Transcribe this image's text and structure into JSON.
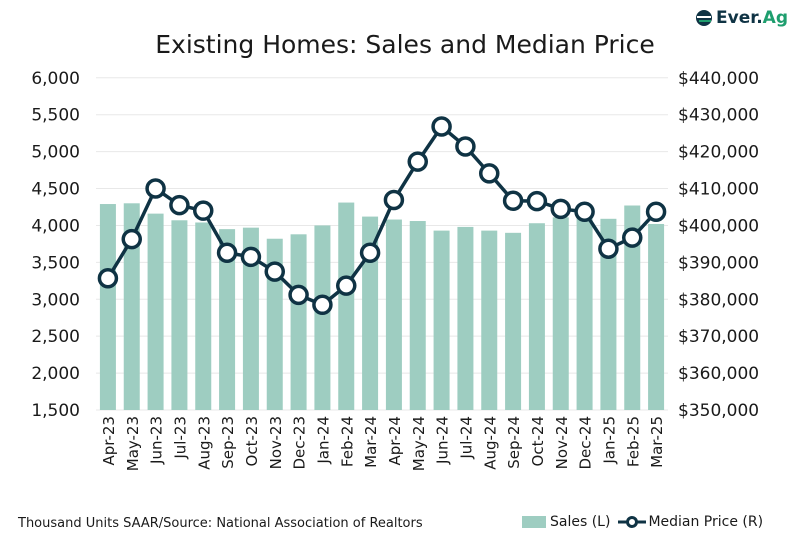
{
  "title": "Existing Homes: Sales and Median Price",
  "logo": {
    "text": "Ever.Ag"
  },
  "source": "Thousand Units SAAR/Source: National Association of Realtors",
  "colors": {
    "bars": "#9ecdc1",
    "line": "#0f3344",
    "grid": "#e8e8e8"
  },
  "chart_data": {
    "type": "bar+line",
    "categories": [
      "Apr-23",
      "May-23",
      "Jun-23",
      "Jul-23",
      "Aug-23",
      "Sep-23",
      "Oct-23",
      "Nov-23",
      "Dec-23",
      "Jan-24",
      "Feb-24",
      "Mar-24",
      "Apr-24",
      "May-24",
      "Jun-24",
      "Jul-24",
      "Aug-24",
      "Sep-24",
      "Oct-24",
      "Nov-24",
      "Dec-24",
      "Jan-25",
      "Feb-25",
      "Mar-25"
    ],
    "series": [
      {
        "name": "Sales (L)",
        "type": "bar",
        "axis": "left",
        "values": [
          4290,
          4300,
          4160,
          4070,
          4040,
          3950,
          3970,
          3820,
          3880,
          4000,
          4310,
          4120,
          4080,
          4060,
          3930,
          3980,
          3930,
          3900,
          4030,
          4110,
          4150,
          4090,
          4270,
          4020
        ]
      },
      {
        "name": "Median Price (R)",
        "type": "line",
        "axis": "right",
        "values": [
          385700,
          396300,
          410000,
          405500,
          404000,
          392600,
          391500,
          387500,
          381200,
          378500,
          383700,
          392600,
          406900,
          417300,
          426800,
          421400,
          414100,
          406700,
          406600,
          404500,
          403700,
          393700,
          396700,
          403700
        ]
      }
    ],
    "y_left": {
      "range": [
        1500,
        6000
      ],
      "ticks": [
        "1,500",
        "2,000",
        "2,500",
        "3,000",
        "3,500",
        "4,000",
        "4,500",
        "5,000",
        "5,500",
        "6,000"
      ]
    },
    "y_right": {
      "range": [
        350000,
        440000
      ],
      "ticks": [
        "$350,000",
        "$360,000",
        "$370,000",
        "$380,000",
        "$390,000",
        "$400,000",
        "$410,000",
        "$420,000",
        "$430,000",
        "$440,000"
      ]
    },
    "grid": true,
    "legend": "bottom-right"
  }
}
